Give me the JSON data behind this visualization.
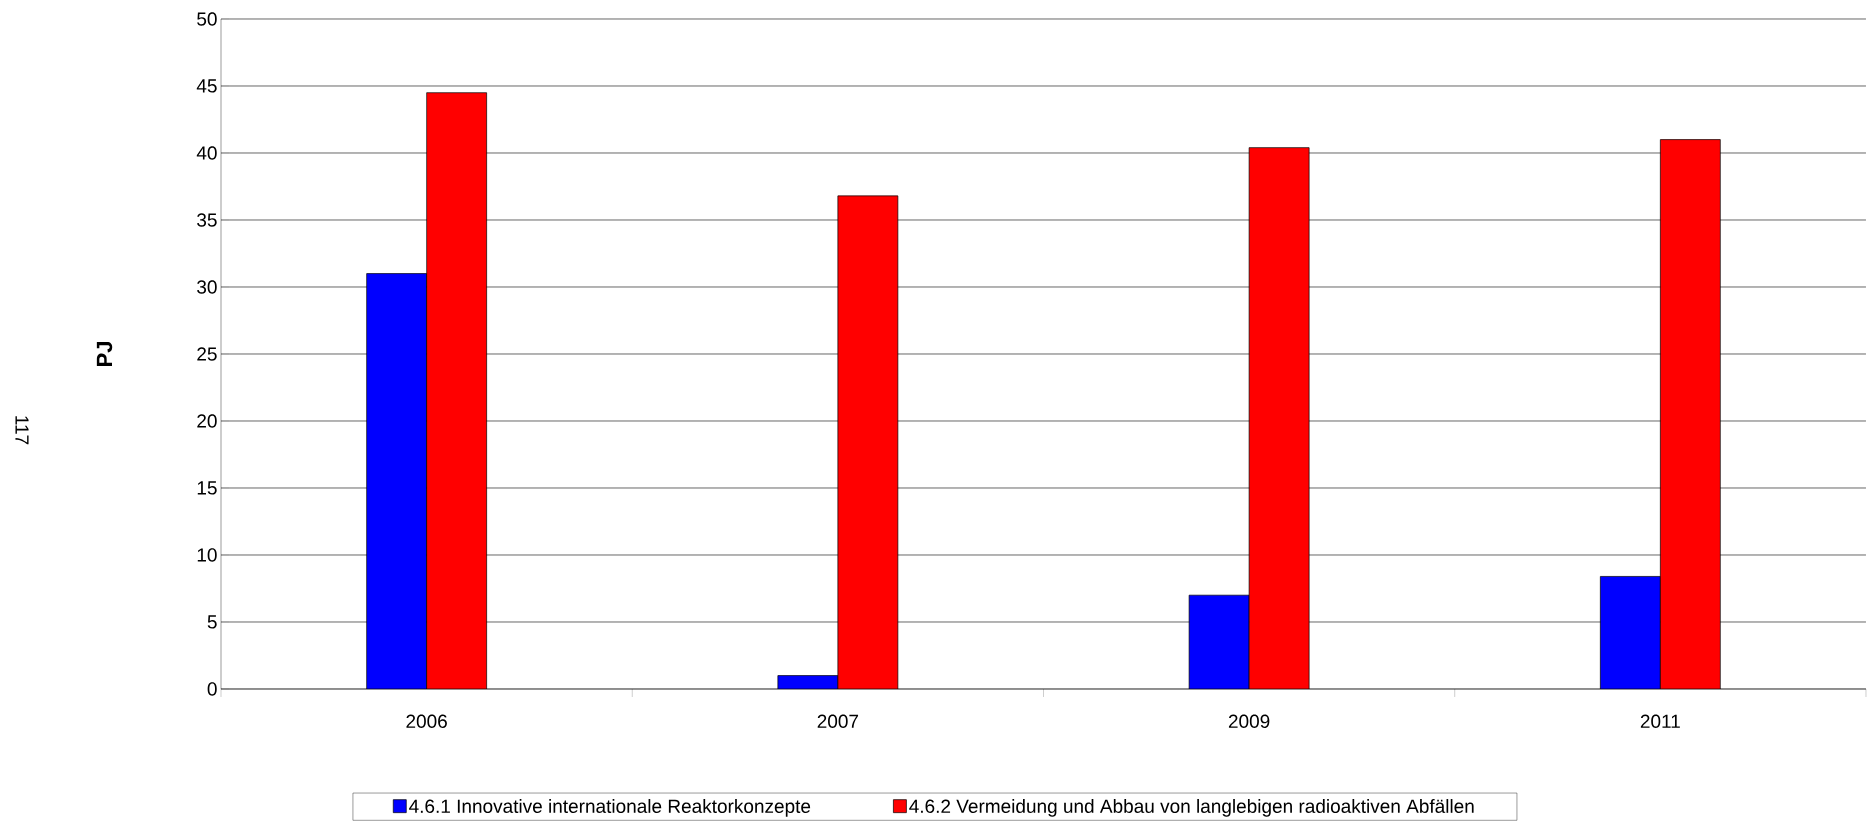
{
  "chart_data": {
    "type": "bar",
    "ylabel": "PJ",
    "categories": [
      "2006",
      "2007",
      "2009",
      "2011"
    ],
    "series": [
      {
        "name": "4.6.1 Innovative internationale Reaktorkonzepte",
        "color": "#0000ff",
        "values": [
          31.0,
          1.0,
          7.0,
          8.4
        ]
      },
      {
        "name": "4.6.2 Vermeidung und Abbau von langlebigen radioaktiven Abfällen",
        "color": "#ff0000",
        "values": [
          44.5,
          36.8,
          40.4,
          41.0
        ]
      }
    ],
    "ylim": [
      0,
      50
    ],
    "yticks": [
      0,
      5,
      10,
      15,
      20,
      25,
      30,
      35,
      40,
      45,
      50
    ],
    "grid": "y",
    "legend": "bottom",
    "annotations": [
      "117"
    ]
  }
}
